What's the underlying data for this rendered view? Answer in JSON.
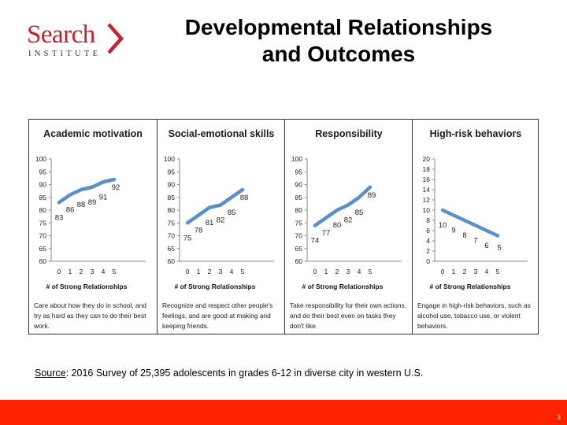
{
  "logo": {
    "name": "Search",
    "sub": "INSTITUTE"
  },
  "title": {
    "line1": "Developmental Relationships",
    "line2": "and Outcomes"
  },
  "colors": {
    "line": "#5b8fc9",
    "brand_red": "#c8202f",
    "footer": "#ff2200"
  },
  "chart_data": [
    {
      "type": "line",
      "title": "Academic motivation",
      "xlabel": "# of Strong Relationships",
      "x": [
        0,
        1,
        2,
        3,
        4,
        5
      ],
      "series": [
        {
          "values": [
            83,
            86,
            88,
            89,
            91,
            92
          ]
        }
      ],
      "ylim": [
        60,
        100
      ],
      "yticks": [
        60,
        65,
        70,
        75,
        80,
        85,
        90,
        95,
        100
      ],
      "description": "Care about how they do in school, and try as hard as they can to do their best work."
    },
    {
      "type": "line",
      "title": "Social-emotional skills",
      "xlabel": "# of Strong Relationships",
      "x": [
        0,
        1,
        2,
        3,
        4,
        5
      ],
      "series": [
        {
          "values": [
            75,
            78,
            81,
            82,
            85,
            88
          ]
        }
      ],
      "ylim": [
        60,
        100
      ],
      "yticks": [
        60,
        65,
        70,
        75,
        80,
        85,
        90,
        95,
        100
      ],
      "description": "Recognize and respect other people's feelings, and are good at making and keeping friends."
    },
    {
      "type": "line",
      "title": "Responsibility",
      "xlabel": "# of Strong Relationships",
      "x": [
        0,
        1,
        2,
        3,
        4,
        5
      ],
      "series": [
        {
          "values": [
            74,
            77,
            80,
            82,
            85,
            89
          ]
        }
      ],
      "ylim": [
        60,
        100
      ],
      "yticks": [
        60,
        65,
        70,
        75,
        80,
        85,
        90,
        95,
        100
      ],
      "description": "Take responsibility for their own actions, and do their best even on tasks they don't like."
    },
    {
      "type": "line",
      "title": "High-risk behaviors",
      "xlabel": "# of Strong Relationships",
      "x": [
        0,
        1,
        2,
        3,
        4,
        5
      ],
      "series": [
        {
          "values": [
            10,
            9,
            8,
            7,
            6,
            5
          ]
        }
      ],
      "ylim": [
        0,
        20
      ],
      "yticks": [
        0,
        2,
        4,
        6,
        8,
        10,
        12,
        14,
        16,
        18,
        20
      ],
      "description": "Engage in high-risk behaviors, such as alcohol use, tobacco use, or violent behaviors."
    }
  ],
  "source": {
    "label": "Source",
    "text": ":  2016 Survey of 25,395 adolescents in grades 6-12 in diverse city in western U.S."
  },
  "page_number": "3"
}
